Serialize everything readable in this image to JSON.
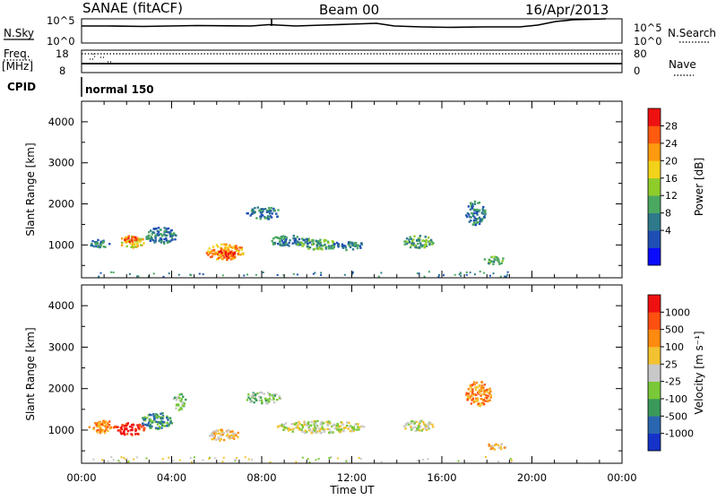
{
  "header": {
    "station": "SANAE (fitACF)",
    "beam": "Beam 00",
    "date": "16/Apr/2013"
  },
  "panels": {
    "nsky_label": "N.Sky",
    "nsky_ticks": [
      "10^5",
      "10^0"
    ],
    "nsearch_label": "N.Search",
    "freq_label_1": "Freq.",
    "freq_label_2": "[MHz]",
    "freq_ticks": [
      "18",
      "8"
    ],
    "nave_label": "Nave",
    "nave_ticks": [
      "80",
      "0"
    ],
    "cpid_label": "CPID",
    "cpid_text": "normal 150"
  },
  "chart_data": [
    {
      "type": "heatmap",
      "name": "power-panel",
      "ylabel": "Slant Range [km]",
      "xlabel": "Time UT",
      "x_ticks": [
        "00:00",
        "04:00",
        "08:00",
        "12:00",
        "16:00",
        "20:00",
        "00:00"
      ],
      "xlim_hours": [
        0,
        24
      ],
      "y_ticks": [
        "1000",
        "2000",
        "3000",
        "4000"
      ],
      "ylim": [
        200,
        4500
      ],
      "colorbar": {
        "label": "Power [dB]",
        "ticks": [
          "28",
          "24",
          "20",
          "16",
          "12",
          "8",
          "4"
        ],
        "colors": [
          "#0b0bff",
          "#1f4fb5",
          "#2e7a8a",
          "#4aa860",
          "#8fcc2a",
          "#f2d21a",
          "#ff9a10",
          "#ff5a10",
          "#ee1111"
        ]
      },
      "blobs": [
        {
          "t": [
            0.3,
            1.2
          ],
          "r": [
            950,
            1150
          ],
          "v": 2
        },
        {
          "t": [
            1.6,
            2.8
          ],
          "r": [
            950,
            1250
          ],
          "v": 5
        },
        {
          "t": [
            2.8,
            4.2
          ],
          "r": [
            1050,
            1450
          ],
          "v": 2
        },
        {
          "t": [
            1.8,
            2.4
          ],
          "r": [
            1100,
            1250
          ],
          "v": 7
        },
        {
          "t": [
            5.5,
            7.2
          ],
          "r": [
            650,
            1050
          ],
          "v": 6
        },
        {
          "t": [
            6.0,
            6.8
          ],
          "r": [
            700,
            900
          ],
          "v": 8
        },
        {
          "t": [
            7.3,
            8.8
          ],
          "r": [
            1650,
            1950
          ],
          "v": 2
        },
        {
          "t": [
            8.2,
            10.2
          ],
          "r": [
            1000,
            1250
          ],
          "v": 2
        },
        {
          "t": [
            9.5,
            11.5
          ],
          "r": [
            900,
            1150
          ],
          "v": 3
        },
        {
          "t": [
            11.0,
            12.6
          ],
          "r": [
            900,
            1100
          ],
          "v": 2
        },
        {
          "t": [
            14.2,
            15.6
          ],
          "r": [
            950,
            1250
          ],
          "v": 3
        },
        {
          "t": [
            17.0,
            17.9
          ],
          "r": [
            1500,
            2100
          ],
          "v": 2
        },
        {
          "t": [
            17.8,
            18.8
          ],
          "r": [
            550,
            750
          ],
          "v": 3
        }
      ]
    },
    {
      "type": "heatmap",
      "name": "velocity-panel",
      "ylabel": "Slant Range [km]",
      "xlabel": "Time UT",
      "x_ticks": [
        "00:00",
        "04:00",
        "08:00",
        "12:00",
        "16:00",
        "20:00",
        "00:00"
      ],
      "xlim_hours": [
        0,
        24
      ],
      "y_ticks": [
        "1000",
        "2000",
        "3000",
        "4000"
      ],
      "ylim": [
        200,
        4500
      ],
      "colorbar": {
        "label": "Velocity [m s⁻¹]",
        "ticks": [
          "1000",
          "500",
          "100",
          "25",
          "-25",
          "-100",
          "-500",
          "-1000"
        ],
        "colors": [
          "#1533c8",
          "#2a66b0",
          "#3a9a5a",
          "#7ac838",
          "#c8c8c8",
          "#f2c230",
          "#ff8a10",
          "#ff5010",
          "#ee1111"
        ]
      },
      "blobs": [
        {
          "t": [
            0.3,
            1.5
          ],
          "r": [
            950,
            1250
          ],
          "v": 6
        },
        {
          "t": [
            1.5,
            2.8
          ],
          "r": [
            900,
            1200
          ],
          "v": 8
        },
        {
          "t": [
            2.6,
            4.0
          ],
          "r": [
            1050,
            1450
          ],
          "v": 2
        },
        {
          "t": [
            4.0,
            4.6
          ],
          "r": [
            1500,
            1900
          ],
          "v": 3
        },
        {
          "t": [
            5.6,
            7.0
          ],
          "r": [
            750,
            1050
          ],
          "v": 5
        },
        {
          "t": [
            7.2,
            8.8
          ],
          "r": [
            1650,
            1950
          ],
          "v": 3
        },
        {
          "t": [
            8.6,
            12.5
          ],
          "r": [
            950,
            1250
          ],
          "v": 4
        },
        {
          "t": [
            14.2,
            15.6
          ],
          "r": [
            1000,
            1250
          ],
          "v": 4
        },
        {
          "t": [
            17.0,
            18.2
          ],
          "r": [
            1600,
            2200
          ],
          "v": 6
        },
        {
          "t": [
            17.9,
            18.8
          ],
          "r": [
            550,
            700
          ],
          "v": 5
        }
      ]
    }
  ]
}
